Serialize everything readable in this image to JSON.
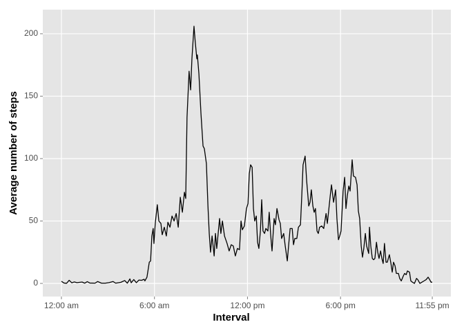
{
  "chart_data": {
    "type": "line",
    "xlabel": "Interval",
    "ylabel": "Average number of steps",
    "x": [
      0,
      10,
      20,
      30,
      40,
      50,
      60,
      80,
      90,
      100,
      110,
      130,
      140,
      155,
      170,
      185,
      200,
      210,
      230,
      245,
      255,
      265,
      270,
      280,
      290,
      300,
      310,
      320,
      323,
      331,
      340,
      345,
      350,
      355,
      358,
      363,
      371,
      377,
      385,
      390,
      398,
      406,
      412,
      420,
      428,
      436,
      444,
      452,
      460,
      468,
      476,
      481,
      486,
      494,
      500,
      505,
      513,
      518,
      524,
      526,
      532,
      540,
      548,
      553,
      561,
      567,
      572,
      577,
      583,
      591,
      596,
      601,
      612,
      617,
      623,
      631,
      641,
      649,
      657,
      665,
      673,
      681,
      689,
      695,
      700,
      708,
      716,
      722,
      727,
      732,
      738,
      743,
      748,
      754,
      759,
      764,
      770,
      775,
      780,
      786,
      791,
      799,
      804,
      810,
      815,
      823,
      828,
      834,
      842,
      847,
      852,
      860,
      866,
      874,
      879,
      885,
      893,
      898,
      903,
      911,
      917,
      925,
      930,
      935,
      943,
      949,
      957,
      962,
      967,
      973,
      978,
      983,
      989,
      994,
      999,
      1007,
      1015,
      1024,
      1029,
      1034,
      1040,
      1045,
      1053,
      1061,
      1066,
      1072,
      1077,
      1082,
      1090,
      1096,
      1101,
      1106,
      1112,
      1117,
      1125,
      1130,
      1138,
      1144,
      1149,
      1154,
      1160,
      1165,
      1170,
      1176,
      1181,
      1189,
      1192,
      1197,
      1203,
      1208,
      1213,
      1219,
      1224,
      1229,
      1235,
      1240,
      1245,
      1250,
      1256,
      1261,
      1269,
      1275,
      1280,
      1285,
      1291,
      1296,
      1304,
      1309,
      1315,
      1323,
      1328,
      1334,
      1339,
      1347,
      1352,
      1358,
      1366,
      1374,
      1379,
      1387,
      1395,
      1403,
      1411,
      1419,
      1425,
      1430,
      1435
    ],
    "series": [
      {
        "color": "#000000",
        "values": [
          1.7,
          0.3,
          0.1,
          2.5,
          0.5,
          1.2,
          0.6,
          1.1,
          0.2,
          1.4,
          0.3,
          0.2,
          1.5,
          0.2,
          0.2,
          0.7,
          1.5,
          0.2,
          0.9,
          2.3,
          0.2,
          3.6,
          0.5,
          3.1,
          0.6,
          2.7,
          2.5,
          3.3,
          2,
          5,
          17,
          18,
          38,
          44,
          32,
          48,
          63,
          50,
          48,
          39,
          45,
          38,
          49,
          45,
          54,
          50,
          56,
          45,
          69,
          57,
          73,
          68,
          133,
          170,
          155,
          180,
          206,
          193,
          180,
          183,
          168,
          136,
          110,
          108,
          96,
          62,
          40,
          25,
          38,
          22,
          40,
          28,
          52,
          40,
          50,
          38,
          32,
          26,
          31,
          30,
          22,
          28,
          27,
          50,
          43,
          46,
          60,
          64,
          88,
          95,
          93,
          60,
          50,
          54,
          33,
          28,
          42,
          67,
          42,
          40,
          44,
          42,
          57,
          38,
          26,
          52,
          47,
          60,
          51,
          48,
          36,
          40,
          30,
          18,
          30,
          44,
          44,
          31,
          36,
          36,
          45,
          47,
          70,
          95,
          102,
          82,
          62,
          65,
          75,
          62,
          57,
          60,
          42,
          40,
          45,
          46,
          44,
          56,
          48,
          58,
          70,
          79,
          65,
          75,
          52,
          35,
          38,
          42,
          74,
          85,
          60,
          70,
          78,
          74,
          99,
          86,
          85,
          79,
          58,
          52,
          30,
          21,
          28,
          40,
          30,
          24,
          45,
          30,
          20,
          19,
          20,
          33,
          25,
          20,
          26,
          20,
          16,
          32,
          17,
          17,
          23,
          16,
          9,
          17,
          14,
          8,
          8,
          4,
          2,
          6,
          8,
          7,
          10,
          9,
          2,
          1,
          0,
          4,
          3,
          0,
          1,
          2,
          3,
          5,
          3,
          1,
          1
        ]
      }
    ],
    "xlim": [
      -72,
      1507
    ],
    "xticks": [
      {
        "value": 0,
        "label": "12:00 am"
      },
      {
        "value": 360,
        "label": "6:00 am"
      },
      {
        "value": 720,
        "label": "12:00 pm"
      },
      {
        "value": 1080,
        "label": "6:00 pm"
      },
      {
        "value": 1435,
        "label": "11:55 pm"
      }
    ],
    "ylim": [
      -10.5,
      219.3
    ],
    "yticks": [
      0,
      50,
      100,
      150,
      200
    ],
    "grid": true
  }
}
